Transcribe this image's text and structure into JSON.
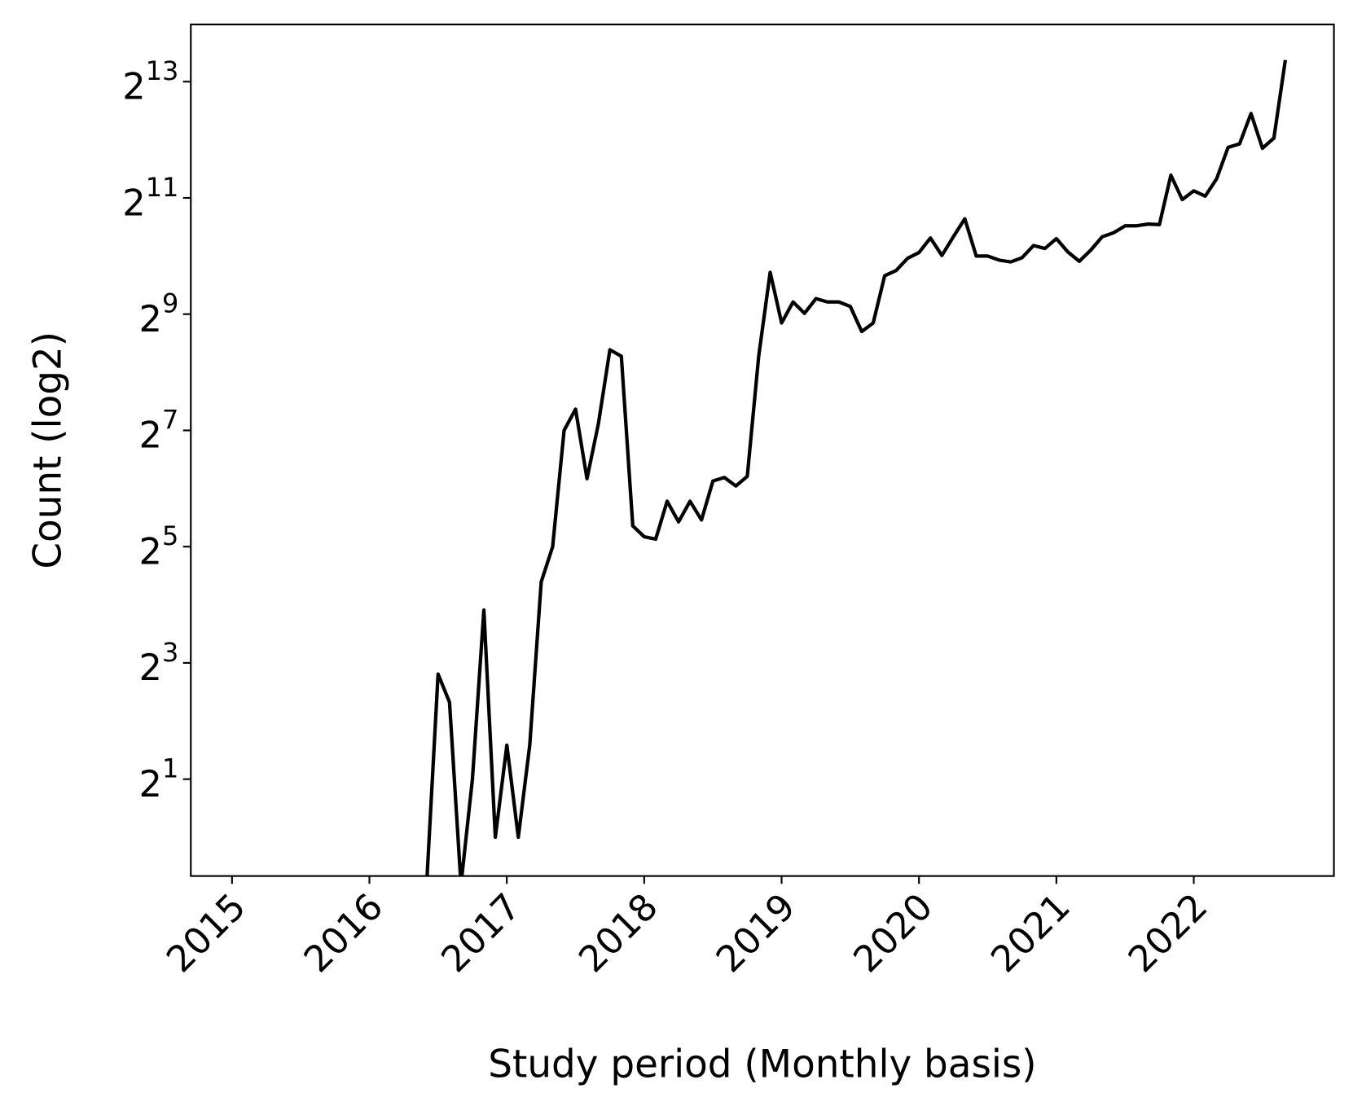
{
  "chart_data": {
    "type": "line",
    "title": "",
    "xlabel": "Study period (Monthly basis)",
    "ylabel": "Count (log2)",
    "yscale": "log2",
    "ylim": [
      0.63,
      16200
    ],
    "xlim": [
      "2014-10",
      "2023-01"
    ],
    "grid": false,
    "line_color": "#000000",
    "x_ticks": [
      "2015",
      "2016",
      "2017",
      "2018",
      "2019",
      "2020",
      "2021",
      "2022"
    ],
    "y_ticks": [
      {
        "value": 2,
        "base": "2",
        "exp": "1"
      },
      {
        "value": 8,
        "base": "2",
        "exp": "3"
      },
      {
        "value": 32,
        "base": "2",
        "exp": "5"
      },
      {
        "value": 128,
        "base": "2",
        "exp": "7"
      },
      {
        "value": 512,
        "base": "2",
        "exp": "9"
      },
      {
        "value": 2048,
        "base": "2",
        "exp": "11"
      },
      {
        "value": 8192,
        "base": "2",
        "exp": "13"
      }
    ],
    "series": [
      {
        "x": [
          "2016-06",
          "2016-07",
          "2016-08",
          "2016-09",
          "2016-10",
          "2016-11",
          "2016-12",
          "2017-01",
          "2017-02",
          "2017-03",
          "2017-04",
          "2017-05",
          "2017-06",
          "2017-07",
          "2017-08",
          "2017-09",
          "2017-10",
          "2017-11",
          "2017-12",
          "2018-01",
          "2018-02",
          "2018-03",
          "2018-04",
          "2018-05",
          "2018-06",
          "2018-07",
          "2018-08",
          "2018-09",
          "2018-10",
          "2018-11",
          "2018-12",
          "2019-01",
          "2019-02",
          "2019-03",
          "2019-04",
          "2019-05",
          "2019-06",
          "2019-07",
          "2019-08",
          "2019-09",
          "2019-10",
          "2019-11",
          "2019-12",
          "2020-01",
          "2020-02",
          "2020-03",
          "2020-04",
          "2020-05",
          "2020-06",
          "2020-07",
          "2020-08",
          "2020-09",
          "2020-10",
          "2020-11",
          "2020-12",
          "2021-01",
          "2021-02",
          "2021-03",
          "2021-04",
          "2021-05",
          "2021-06",
          "2021-07",
          "2021-08",
          "2021-09",
          "2021-10",
          "2021-11",
          "2021-12",
          "2022-01",
          "2022-02",
          "2022-03",
          "2022-04",
          "2022-05",
          "2022-06",
          "2022-07",
          "2022-08",
          "2022-09"
        ],
        "y": [
          0,
          7,
          5,
          0,
          2,
          15,
          1,
          3,
          1,
          3,
          21,
          32,
          128,
          165,
          72,
          139,
          335,
          310,
          41,
          36,
          35,
          55,
          43,
          55,
          44,
          70,
          73,
          66,
          74,
          311,
          843,
          461,
          592,
          517,
          616,
          592,
          592,
          561,
          416,
          461,
          809,
          861,
          996,
          1068,
          1270,
          1031,
          1287,
          1596,
          1024,
          1024,
          975,
          955,
          1003,
          1160,
          1121,
          1260,
          1075,
          962,
          1098,
          1287,
          1351,
          1468,
          1468,
          1499,
          1490,
          2684,
          2006,
          2226,
          2091,
          2574,
          3743,
          3900,
          5600,
          3700,
          4180,
          10600
        ]
      }
    ]
  }
}
